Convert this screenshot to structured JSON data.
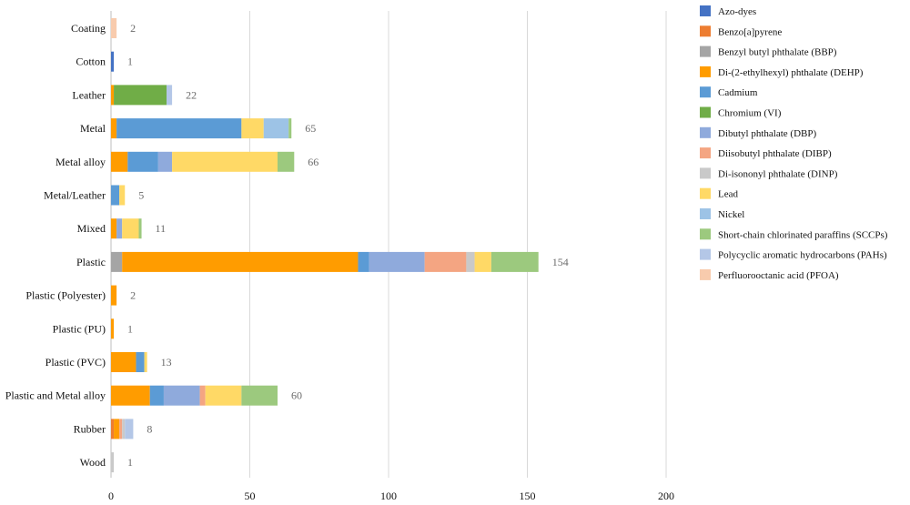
{
  "chart_data": {
    "type": "bar",
    "orientation": "horizontal",
    "stacked": true,
    "categories": [
      "Coating",
      "Cotton",
      "Leather",
      "Metal",
      "Metal alloy",
      "Metal/Leather",
      "Mixed",
      "Plastic",
      "Plastic (Polyester)",
      "Plastic (PU)",
      "Plastic (PVC)",
      "Plastic and Metal alloy",
      "Rubber",
      "Wood"
    ],
    "totals": [
      2,
      1,
      22,
      65,
      66,
      5,
      11,
      154,
      2,
      1,
      13,
      60,
      8,
      1
    ],
    "xlim": [
      0,
      200
    ],
    "xticks": [
      0,
      50,
      100,
      150,
      200
    ],
    "grid": "vertical",
    "legend_position": "right",
    "series": [
      {
        "name": "Azo-dyes",
        "color": "#4472c4",
        "values": [
          0,
          1,
          0,
          0,
          0,
          0,
          0,
          0,
          0,
          0,
          0,
          0,
          0,
          0
        ]
      },
      {
        "name": "Benzo[a]pyrene",
        "color": "#ed7d31",
        "values": [
          0,
          0,
          0,
          0,
          0,
          0,
          0,
          0,
          0,
          0,
          0,
          0,
          1,
          0
        ]
      },
      {
        "name": "Benzyl butyl phthalate (BBP)",
        "color": "#a5a5a5",
        "values": [
          0,
          0,
          0,
          0,
          0,
          0,
          0,
          4,
          0,
          0,
          0,
          0,
          0,
          0
        ]
      },
      {
        "name": "Di-(2-ethylhexyl) phthalate (DEHP)",
        "color": "#ff9c00",
        "values": [
          0,
          0,
          1,
          2,
          6,
          0,
          2,
          85,
          2,
          1,
          9,
          14,
          2,
          0
        ]
      },
      {
        "name": "Cadmium",
        "color": "#5b9bd5",
        "values": [
          0,
          0,
          0,
          45,
          11,
          3,
          0,
          4,
          0,
          0,
          3,
          5,
          0,
          0
        ]
      },
      {
        "name": "Chromium (VI)",
        "color": "#70ad47",
        "values": [
          0,
          0,
          19,
          0,
          0,
          0,
          0,
          0,
          0,
          0,
          0,
          0,
          0,
          0
        ]
      },
      {
        "name": "Dibutyl phthalate (DBP)",
        "color": "#8faadc",
        "values": [
          0,
          0,
          0,
          0,
          5,
          0,
          2,
          20,
          0,
          0,
          0,
          13,
          0,
          0
        ]
      },
      {
        "name": "Diisobutyl phthalate (DIBP)",
        "color": "#f4a582",
        "values": [
          0,
          0,
          0,
          0,
          0,
          0,
          0,
          15,
          0,
          0,
          0,
          2,
          1,
          0
        ]
      },
      {
        "name": "Di-isononyl phthalate (DINP)",
        "color": "#c9c9c9",
        "values": [
          0,
          0,
          0,
          0,
          0,
          0,
          0,
          3,
          0,
          0,
          0,
          0,
          1,
          1
        ]
      },
      {
        "name": "Lead",
        "color": "#ffd966",
        "values": [
          0,
          0,
          0,
          8,
          38,
          2,
          6,
          6,
          0,
          0,
          1,
          13,
          0,
          0
        ]
      },
      {
        "name": "Nickel",
        "color": "#9dc3e6",
        "values": [
          0,
          0,
          0,
          9,
          0,
          0,
          0,
          0,
          0,
          0,
          0,
          0,
          0,
          0
        ]
      },
      {
        "name": " Short-chain chlorinated paraffins (SCCPs)",
        "color": "#9cc97e",
        "values": [
          0,
          0,
          0,
          1,
          6,
          0,
          1,
          17,
          0,
          0,
          0,
          13,
          0,
          0
        ]
      },
      {
        "name": "Polycyclic aromatic hydrocarbons (PAHs)",
        "color": "#b4c7e7",
        "values": [
          0,
          0,
          2,
          0,
          0,
          0,
          0,
          0,
          0,
          0,
          0,
          0,
          3,
          0
        ]
      },
      {
        "name": "Perfluorooctanic acid (PFOA)",
        "color": "#f8cbad",
        "values": [
          2,
          0,
          0,
          0,
          0,
          0,
          0,
          0,
          0,
          0,
          0,
          0,
          0,
          0
        ]
      }
    ]
  }
}
